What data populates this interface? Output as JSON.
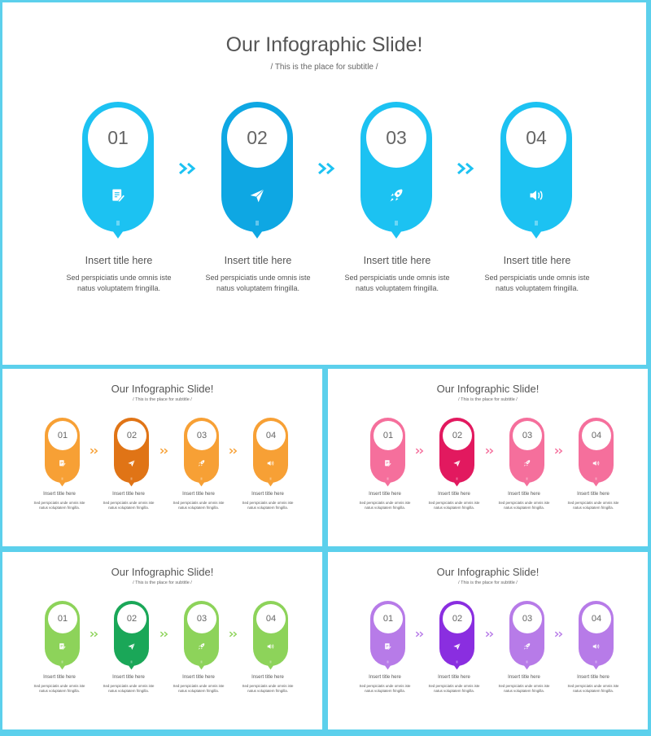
{
  "title": "Our Infographic Slide!",
  "subtitle": "/ This is the place for subtitle /",
  "item_title": "Insert title here",
  "item_desc_line1": "Sed perspiciatis unde omnis iste",
  "item_desc_line2": "natus voluptatem fringilla.",
  "steps": [
    {
      "number": "01",
      "icon": "note-edit-icon"
    },
    {
      "number": "02",
      "icon": "paper-plane-icon"
    },
    {
      "number": "03",
      "icon": "rocket-icon"
    },
    {
      "number": "04",
      "icon": "speaker-icon"
    }
  ],
  "themes": [
    {
      "name": "blue",
      "base": "#1cc2f2",
      "dark": "#0ea7e3",
      "base_top": "#27c9f5",
      "dark_top": "#17a3e0"
    },
    {
      "name": "orange",
      "base": "#f7a035",
      "dark": "#e07416"
    },
    {
      "name": "pink",
      "base": "#f56f9c",
      "dark": "#e2195f"
    },
    {
      "name": "green",
      "base": "#8dd35a",
      "dark": "#1aa758"
    },
    {
      "name": "purple",
      "base": "#b77be8",
      "dark": "#8a2ee0"
    }
  ]
}
